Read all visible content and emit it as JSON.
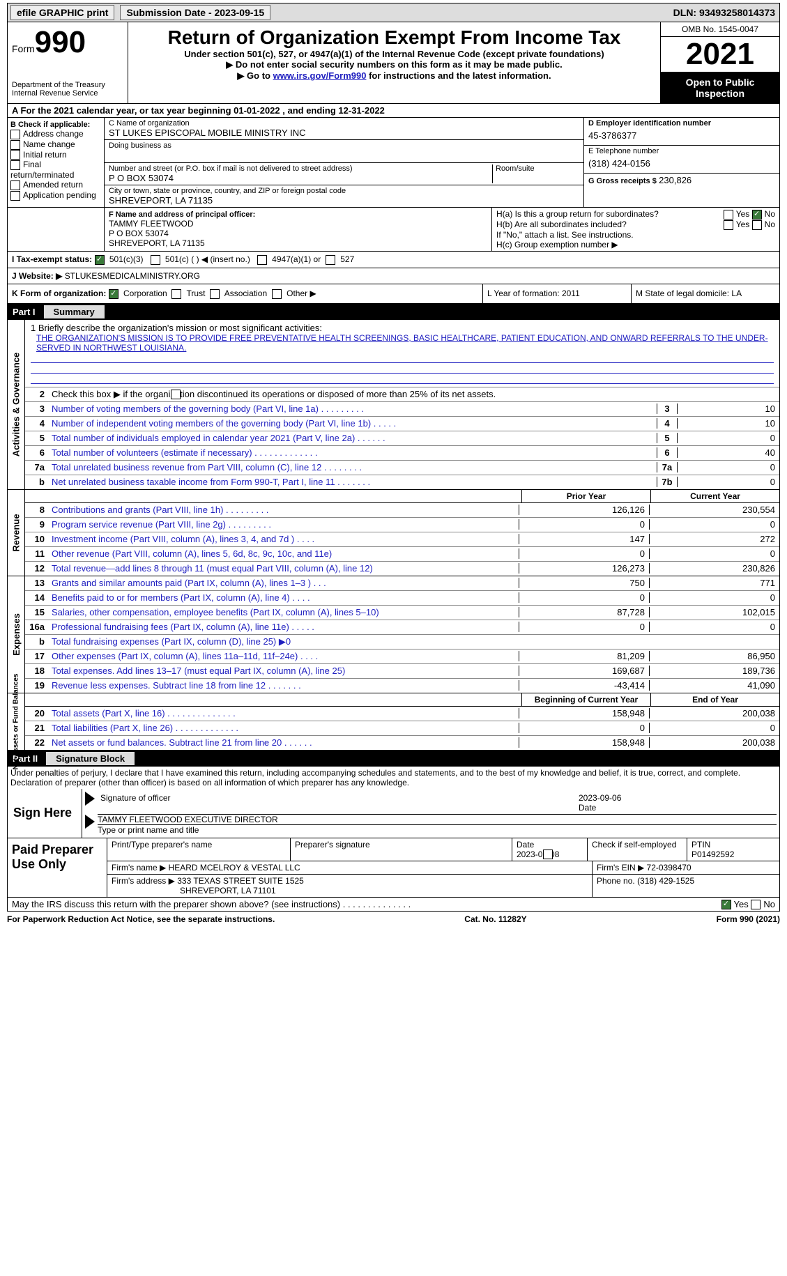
{
  "topbar": {
    "efile": "efile GRAPHIC print",
    "sub_label": "Submission Date - 2023-09-15",
    "dln_label": "DLN: 93493258014373"
  },
  "header": {
    "form_prefix": "Form",
    "form_num": "990",
    "dept1": "Department of the Treasury",
    "dept2": "Internal Revenue Service",
    "title": "Return of Organization Exempt From Income Tax",
    "sub1": "Under section 501(c), 527, or 4947(a)(1) of the Internal Revenue Code (except private foundations)",
    "sub2": "Do not enter social security numbers on this form as it may be made public.",
    "sub3_pre": "Go to ",
    "sub3_link": "www.irs.gov/Form990",
    "sub3_post": " for instructions and the latest information.",
    "omb": "OMB No. 1545-0047",
    "year": "2021",
    "open": "Open to Public Inspection"
  },
  "lineA": "A For the 2021 calendar year, or tax year beginning 01-01-2022  , and ending 12-31-2022",
  "secB": {
    "title": "B Check if applicable:",
    "items": [
      "Address change",
      "Name change",
      "Initial return",
      "Final return/terminated",
      "Amended return",
      "Application pending"
    ]
  },
  "secC": {
    "name_lbl": "C Name of organization",
    "name": "ST LUKES EPISCOPAL MOBILE MINISTRY INC",
    "dba_lbl": "Doing business as",
    "street_lbl": "Number and street (or P.O. box if mail is not delivered to street address)",
    "room_lbl": "Room/suite",
    "street": "P O BOX 53074",
    "city_lbl": "City or town, state or province, country, and ZIP or foreign postal code",
    "city": "SHREVEPORT, LA  71135"
  },
  "secD": {
    "lbl": "D Employer identification number",
    "val": "45-3786377"
  },
  "secE": {
    "lbl": "E Telephone number",
    "val": "(318) 424-0156"
  },
  "secG": {
    "lbl": "G Gross receipts $",
    "val": "230,826"
  },
  "secF": {
    "lbl": "F  Name and address of principal officer:",
    "l1": "TAMMY FLEETWOOD",
    "l2": "P O BOX 53074",
    "l3": "SHREVEPORT, LA  71135"
  },
  "secH": {
    "ha": "H(a)  Is this a group return for subordinates?",
    "hb": "H(b)  Are all subordinates included?",
    "hb_note": "If \"No,\" attach a list. See instructions.",
    "hc": "H(c)  Group exemption number ▶",
    "yes": "Yes",
    "no": "No"
  },
  "secI": {
    "lbl": "I   Tax-exempt status:",
    "o1": "501(c)(3)",
    "o2": "501(c) (  ) ◀ (insert no.)",
    "o3": "4947(a)(1) or",
    "o4": "527"
  },
  "secJ": {
    "lbl": "J   Website: ▶",
    "val": "STLUKESMEDICALMINISTRY.ORG"
  },
  "secK": {
    "lbl": "K Form of organization:",
    "o1": "Corporation",
    "o2": "Trust",
    "o3": "Association",
    "o4": "Other ▶"
  },
  "secL": {
    "lbl": "L Year of formation: 2011"
  },
  "secM": {
    "lbl": "M State of legal domicile: LA"
  },
  "part1": {
    "num": "Part I",
    "title": "Summary"
  },
  "summary": {
    "l1_lbl": "1  Briefly describe the organization's mission or most significant activities:",
    "mission": "THE ORGANIZATION'S MISSION IS TO PROVIDE FREE PREVENTATIVE HEALTH SCREENINGS, BASIC HEALTHCARE, PATIENT EDUCATION, AND ONWARD REFERRALS TO THE UNDER-SERVED IN NORTHWEST LOUISIANA.",
    "l2": "Check this box ▶        if the organization discontinued its operations or disposed of more than 25% of its net assets.",
    "vtab1": "Activities & Governance",
    "rows1": [
      {
        "n": "3",
        "d": "Number of voting members of the governing body (Part VI, line 1a)  .  .  .  .  .  .  .  .  .",
        "b": "3",
        "v": "10"
      },
      {
        "n": "4",
        "d": "Number of independent voting members of the governing body (Part VI, line 1b)  .  .  .  .  .",
        "b": "4",
        "v": "10"
      },
      {
        "n": "5",
        "d": "Total number of individuals employed in calendar year 2021 (Part V, line 2a)  .  .  .  .  .  .",
        "b": "5",
        "v": "0"
      },
      {
        "n": "6",
        "d": "Total number of volunteers (estimate if necessary)  .  .  .  .  .  .  .  .  .  .  .  .  .",
        "b": "6",
        "v": "40"
      },
      {
        "n": "7a",
        "d": "Total unrelated business revenue from Part VIII, column (C), line 12  .  .  .  .  .  .  .  .",
        "b": "7a",
        "v": "0"
      },
      {
        "n": "b",
        "d": "Net unrelated business taxable income from Form 990-T, Part I, line 11  .  .  .  .  .  .  .",
        "b": "7b",
        "v": "0"
      }
    ],
    "prior": "Prior Year",
    "curr": "Current Year",
    "vtab2": "Revenue",
    "rows2": [
      {
        "n": "8",
        "d": "Contributions and grants (Part VIII, line 1h)  .  .  .  .  .  .  .  .  .",
        "p": "126,126",
        "c": "230,554"
      },
      {
        "n": "9",
        "d": "Program service revenue (Part VIII, line 2g)  .  .  .  .  .  .  .  .  .",
        "p": "0",
        "c": "0"
      },
      {
        "n": "10",
        "d": "Investment income (Part VIII, column (A), lines 3, 4, and 7d )  .  .  .  .",
        "p": "147",
        "c": "272"
      },
      {
        "n": "11",
        "d": "Other revenue (Part VIII, column (A), lines 5, 6d, 8c, 9c, 10c, and 11e)",
        "p": "0",
        "c": "0"
      },
      {
        "n": "12",
        "d": "Total revenue—add lines 8 through 11 (must equal Part VIII, column (A), line 12)",
        "p": "126,273",
        "c": "230,826"
      }
    ],
    "vtab3": "Expenses",
    "rows3": [
      {
        "n": "13",
        "d": "Grants and similar amounts paid (Part IX, column (A), lines 1–3 )  .  .  .",
        "p": "750",
        "c": "771"
      },
      {
        "n": "14",
        "d": "Benefits paid to or for members (Part IX, column (A), line 4)  .  .  .  .",
        "p": "0",
        "c": "0"
      },
      {
        "n": "15",
        "d": "Salaries, other compensation, employee benefits (Part IX, column (A), lines 5–10)",
        "p": "87,728",
        "c": "102,015"
      },
      {
        "n": "16a",
        "d": "Professional fundraising fees (Part IX, column (A), line 11e)  .  .  .  .  .",
        "p": "0",
        "c": "0"
      },
      {
        "n": "b",
        "d": "Total fundraising expenses (Part IX, column (D), line 25) ▶0",
        "p": "",
        "c": "",
        "shade": true
      },
      {
        "n": "17",
        "d": "Other expenses (Part IX, column (A), lines 11a–11d, 11f–24e)  .  .  .  .",
        "p": "81,209",
        "c": "86,950"
      },
      {
        "n": "18",
        "d": "Total expenses. Add lines 13–17 (must equal Part IX, column (A), line 25)",
        "p": "169,687",
        "c": "189,736"
      },
      {
        "n": "19",
        "d": "Revenue less expenses. Subtract line 18 from line 12  .  .  .  .  .  .  .",
        "p": "-43,414",
        "c": "41,090"
      }
    ],
    "boy": "Beginning of Current Year",
    "eoy": "End of Year",
    "vtab4": "Net Assets or Fund Balances",
    "rows4": [
      {
        "n": "20",
        "d": "Total assets (Part X, line 16)  .  .  .  .  .  .  .  .  .  .  .  .  .  .",
        "p": "158,948",
        "c": "200,038"
      },
      {
        "n": "21",
        "d": "Total liabilities (Part X, line 26)  .  .  .  .  .  .  .  .  .  .  .  .  .",
        "p": "0",
        "c": "0"
      },
      {
        "n": "22",
        "d": "Net assets or fund balances. Subtract line 21 from line 20  .  .  .  .  .  .",
        "p": "158,948",
        "c": "200,038"
      }
    ]
  },
  "part2": {
    "num": "Part II",
    "title": "Signature Block"
  },
  "sig": {
    "decl": "Under penalties of perjury, I declare that I have examined this return, including accompanying schedules and statements, and to the best of my knowledge and belief, it is true, correct, and complete. Declaration of preparer (other than officer) is based on all information of which preparer has any knowledge.",
    "sign_here": "Sign Here",
    "officer_sig": "Signature of officer",
    "date1": "2023-09-06",
    "date_lbl": "Date",
    "name_title": "TAMMY FLEETWOOD  EXECUTIVE DIRECTOR",
    "type_lbl": "Type or print name and title",
    "paid": "Paid Preparer Use Only",
    "prep_name_lbl": "Print/Type preparer's name",
    "prep_sig_lbl": "Preparer's signature",
    "date2_lbl": "Date",
    "date2": "2023-09-08",
    "check_self": "Check          if self-employed",
    "ptin_lbl": "PTIN",
    "ptin": "P01492592",
    "firm_name_lbl": "Firm's name    ▶",
    "firm_name": "HEARD MCELROY & VESTAL LLC",
    "firm_ein_lbl": "Firm's EIN ▶",
    "firm_ein": "72-0398470",
    "firm_addr_lbl": "Firm's address ▶",
    "firm_addr1": "333 TEXAS STREET SUITE 1525",
    "firm_addr2": "SHREVEPORT, LA  71101",
    "phone_lbl": "Phone no.",
    "phone": "(318) 429-1525"
  },
  "discuss": "May the IRS discuss this return with the preparer shown above? (see instructions)  .  .  .  .  .  .  .  .  .  .  .  .  .  .",
  "footer": {
    "l": "For Paperwork Reduction Act Notice, see the separate instructions.",
    "m": "Cat. No. 11282Y",
    "r": "Form 990 (2021)"
  }
}
